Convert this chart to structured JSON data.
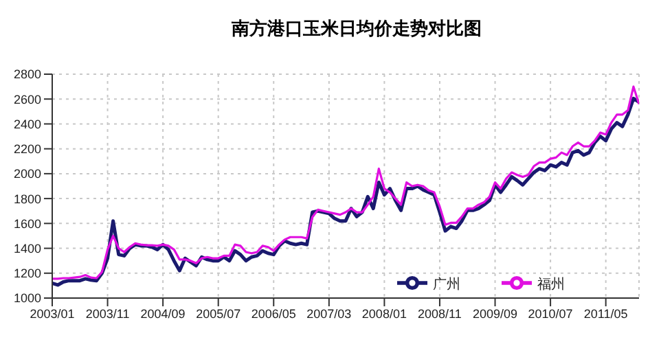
{
  "chart_data": {
    "type": "line",
    "title": "南方港口玉米日均价走势对比图",
    "categories": [
      "2003/01",
      null,
      null,
      null,
      null,
      null,
      null,
      null,
      null,
      null,
      "2003/11",
      null,
      null,
      null,
      null,
      null,
      null,
      null,
      null,
      null,
      "2004/09",
      null,
      null,
      null,
      null,
      null,
      null,
      null,
      null,
      null,
      "2005/07",
      null,
      null,
      null,
      null,
      null,
      null,
      null,
      null,
      null,
      "2006/05",
      null,
      null,
      null,
      null,
      null,
      null,
      null,
      null,
      null,
      "2007/03",
      null,
      null,
      null,
      null,
      null,
      null,
      null,
      null,
      null,
      "2008/01",
      null,
      null,
      null,
      null,
      null,
      null,
      null,
      null,
      null,
      "2008/11",
      null,
      null,
      null,
      null,
      null,
      null,
      null,
      null,
      null,
      "2009/09",
      null,
      null,
      null,
      null,
      null,
      null,
      null,
      null,
      null,
      "2010/07",
      null,
      null,
      null,
      null,
      null,
      null,
      null,
      null,
      null,
      "2011/05",
      null,
      null,
      null,
      null,
      null,
      null
    ],
    "series": [
      {
        "name": "广州",
        "color": "#1a1a6e",
        "values": [
          1120,
          1105,
          1130,
          1140,
          1140,
          1140,
          1155,
          1145,
          1140,
          1200,
          1320,
          1620,
          1350,
          1340,
          1400,
          1430,
          1420,
          1420,
          1410,
          1390,
          1430,
          1390,
          1300,
          1220,
          1320,
          1290,
          1260,
          1330,
          1310,
          1300,
          1300,
          1330,
          1300,
          1380,
          1350,
          1300,
          1330,
          1340,
          1380,
          1360,
          1350,
          1420,
          1460,
          1440,
          1430,
          1440,
          1430,
          1690,
          1700,
          1690,
          1680,
          1640,
          1620,
          1620,
          1720,
          1655,
          1690,
          1815,
          1720,
          1930,
          1830,
          1880,
          1785,
          1705,
          1880,
          1880,
          1900,
          1870,
          1850,
          1830,
          1690,
          1540,
          1575,
          1560,
          1620,
          1705,
          1705,
          1720,
          1750,
          1785,
          1910,
          1850,
          1910,
          1975,
          1945,
          1910,
          1960,
          2010,
          2040,
          2025,
          2070,
          2055,
          2090,
          2070,
          2170,
          2185,
          2150,
          2170,
          2250,
          2300,
          2265,
          2360,
          2410,
          2380,
          2475,
          2605,
          2575
        ]
      },
      {
        "name": "福州",
        "color": "#e010e0",
        "values": [
          1155,
          1155,
          1160,
          1160,
          1165,
          1170,
          1185,
          1165,
          1160,
          1210,
          1390,
          1500,
          1400,
          1370,
          1410,
          1440,
          1430,
          1425,
          1425,
          1420,
          1430,
          1420,
          1390,
          1310,
          1310,
          1300,
          1280,
          1320,
          1330,
          1320,
          1320,
          1340,
          1340,
          1430,
          1420,
          1370,
          1360,
          1370,
          1420,
          1410,
          1380,
          1430,
          1470,
          1490,
          1490,
          1490,
          1480,
          1650,
          1710,
          1700,
          1690,
          1680,
          1670,
          1690,
          1720,
          1690,
          1690,
          1750,
          1815,
          2040,
          1880,
          1850,
          1800,
          1750,
          1930,
          1900,
          1910,
          1900,
          1865,
          1850,
          1735,
          1590,
          1605,
          1605,
          1655,
          1720,
          1720,
          1750,
          1770,
          1815,
          1930,
          1880,
          1960,
          2010,
          1990,
          1975,
          1990,
          2060,
          2090,
          2090,
          2120,
          2130,
          2170,
          2150,
          2220,
          2250,
          2220,
          2220,
          2265,
          2330,
          2315,
          2410,
          2475,
          2475,
          2510,
          2700,
          2560
        ]
      }
    ],
    "ylim": [
      1000,
      2800
    ],
    "yticks": [
      1000,
      1200,
      1400,
      1600,
      1800,
      2000,
      2200,
      2400,
      2600,
      2800
    ],
    "grid": true,
    "legend": "bottom right",
    "marker": "none",
    "line_style": "solid"
  }
}
